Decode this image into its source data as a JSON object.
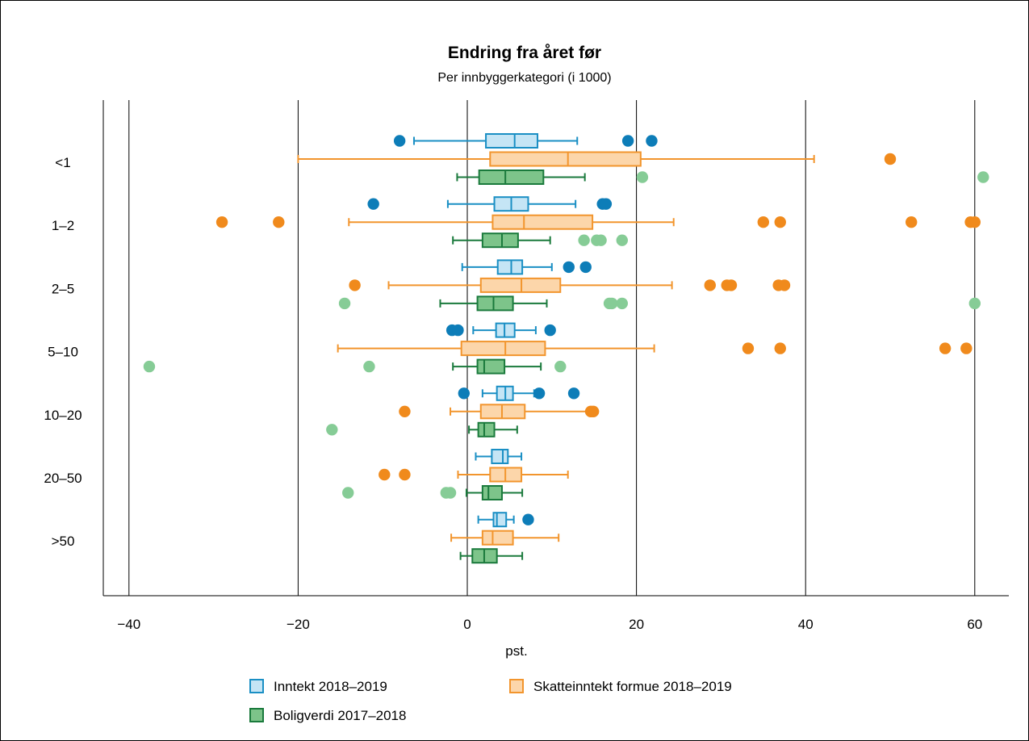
{
  "chart_data": {
    "type": "boxplot",
    "orientation": "horizontal",
    "title": "Endring fra året før",
    "subtitle": "Per innbyggerkategori (i 1000)",
    "xlabel": "pst.",
    "xlim": [
      -42,
      64
    ],
    "xticks": [
      -40,
      -20,
      0,
      20,
      40,
      60
    ],
    "xtick_labels": [
      "−40",
      "−20",
      "0",
      "20",
      "40",
      "60"
    ],
    "grid": "vertical",
    "categories": [
      "<1",
      "1–2",
      "2–5",
      "5–10",
      "10–20",
      "20–50",
      ">50"
    ],
    "legend_position": "bottom",
    "series": [
      {
        "name": "Inntekt 2018–2019",
        "stroke": "#1a8fc4",
        "fill": "#c5e5f5",
        "outlier_color": "#0d7db8",
        "boxes": [
          {
            "wl": -6.3,
            "q1": 2.2,
            "med": 5.6,
            "q3": 8.3,
            "wh": 13.0,
            "outliers": [
              -8.0,
              19.0,
              21.8
            ]
          },
          {
            "wl": -2.3,
            "q1": 3.2,
            "med": 5.2,
            "q3": 7.2,
            "wh": 12.8,
            "outliers": [
              -11.1,
              16.0,
              16.4
            ]
          },
          {
            "wl": -0.6,
            "q1": 3.6,
            "med": 5.2,
            "q3": 6.5,
            "wh": 10.0,
            "outliers": [
              12.0,
              14.0
            ]
          },
          {
            "wl": 0.7,
            "q1": 3.4,
            "med": 4.4,
            "q3": 5.6,
            "wh": 8.1,
            "outliers": [
              -1.8,
              -1.1,
              9.8
            ]
          },
          {
            "wl": 1.8,
            "q1": 3.5,
            "med": 4.5,
            "q3": 5.4,
            "wh": 7.9,
            "outliers": [
              -0.4,
              8.5,
              12.6
            ]
          },
          {
            "wl": 1.0,
            "q1": 2.9,
            "med": 4.2,
            "q3": 4.8,
            "wh": 6.4,
            "outliers": []
          },
          {
            "wl": 1.3,
            "q1": 3.1,
            "med": 3.5,
            "q3": 4.6,
            "wh": 5.5,
            "outliers": [
              7.2
            ]
          }
        ]
      },
      {
        "name": "Skatteinntekt formue 2018–2019",
        "stroke": "#f2952d",
        "fill": "#fcd6aa",
        "outlier_color": "#f08a1c",
        "boxes": [
          {
            "wl": -20.0,
            "q1": 2.7,
            "med": 11.9,
            "q3": 20.5,
            "wh": 41.0,
            "outliers": [
              50.0
            ]
          },
          {
            "wl": -14.0,
            "q1": 3.0,
            "med": 6.7,
            "q3": 14.8,
            "wh": 24.4,
            "outliers": [
              -29.0,
              -22.3,
              35.0,
              37.0,
              52.5,
              59.5,
              60.0
            ]
          },
          {
            "wl": -9.3,
            "q1": 1.6,
            "med": 6.4,
            "q3": 11.0,
            "wh": 24.2,
            "outliers": [
              -13.3,
              28.7,
              30.7,
              31.2,
              36.8,
              37.5
            ]
          },
          {
            "wl": -15.3,
            "q1": -0.7,
            "med": 4.5,
            "q3": 9.2,
            "wh": 22.1,
            "outliers": [
              33.2,
              37.0,
              56.5,
              59.0
            ]
          },
          {
            "wl": -2.0,
            "q1": 1.6,
            "med": 4.1,
            "q3": 6.8,
            "wh": 14.6,
            "outliers": [
              -7.4,
              14.6,
              14.9
            ]
          },
          {
            "wl": -1.1,
            "q1": 2.7,
            "med": 4.5,
            "q3": 6.4,
            "wh": 11.9,
            "outliers": [
              -9.8,
              -7.4
            ]
          },
          {
            "wl": -1.9,
            "q1": 1.8,
            "med": 3.0,
            "q3": 5.4,
            "wh": 10.8,
            "outliers": []
          }
        ]
      },
      {
        "name": "Boligverdi 2017–2018",
        "stroke": "#1a7a3c",
        "fill": "#7dc48a",
        "outlier_color": "#86cc96",
        "boxes": [
          {
            "wl": -1.2,
            "q1": 1.4,
            "med": 4.5,
            "q3": 9.0,
            "wh": 13.9,
            "outliers": [
              20.7,
              61.0
            ]
          },
          {
            "wl": -1.7,
            "q1": 1.8,
            "med": 4.1,
            "q3": 6.0,
            "wh": 9.8,
            "outliers": [
              13.8,
              15.3,
              15.8,
              18.3
            ]
          },
          {
            "wl": -3.2,
            "q1": 1.2,
            "med": 3.1,
            "q3": 5.4,
            "wh": 9.4,
            "outliers": [
              -14.5,
              16.8,
              17.1,
              18.3,
              60.0
            ]
          },
          {
            "wl": -1.7,
            "q1": 1.2,
            "med": 2.0,
            "q3": 4.4,
            "wh": 8.7,
            "outliers": [
              -37.6,
              -11.6,
              11.0
            ]
          },
          {
            "wl": 0.2,
            "q1": 1.3,
            "med": 2.0,
            "q3": 3.2,
            "wh": 5.9,
            "outliers": [
              -16.0
            ]
          },
          {
            "wl": -0.1,
            "q1": 1.8,
            "med": 2.5,
            "q3": 4.1,
            "wh": 6.5,
            "outliers": [
              -14.1,
              -2.5,
              -2.0
            ]
          },
          {
            "wl": -0.8,
            "q1": 0.6,
            "med": 2.0,
            "q3": 3.5,
            "wh": 6.5,
            "outliers": []
          }
        ]
      }
    ]
  }
}
